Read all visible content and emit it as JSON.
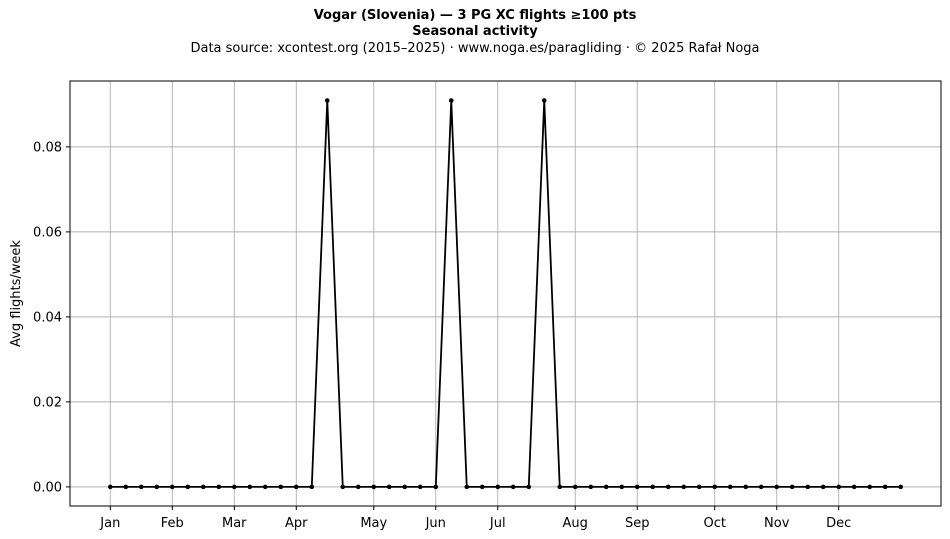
{
  "title": "Vogar (Slovenia)  —  3 PG XC flights ≥100 pts",
  "title2": "Seasonal activity",
  "subtitle": "Data source: xcontest.org (2015–2025)  ·  www.noga.es/paragliding  ·  © 2025 Rafał Noga",
  "chart_data": {
    "type": "line",
    "ylabel": "Avg flights/week",
    "xlabel": "",
    "x": [
      1,
      2,
      3,
      4,
      5,
      6,
      7,
      8,
      9,
      10,
      11,
      12,
      13,
      14,
      15,
      16,
      17,
      18,
      19,
      20,
      21,
      22,
      23,
      24,
      25,
      26,
      27,
      28,
      29,
      30,
      31,
      32,
      33,
      34,
      35,
      36,
      37,
      38,
      39,
      40,
      41,
      42,
      43,
      44,
      45,
      46,
      47,
      48,
      49,
      50,
      51,
      52
    ],
    "series": [
      {
        "values": [
          0,
          0,
          0,
          0,
          0,
          0,
          0,
          0,
          0,
          0,
          0,
          0,
          0,
          0,
          0.0909,
          0,
          0,
          0,
          0,
          0,
          0,
          0,
          0.0909,
          0,
          0,
          0,
          0,
          0,
          0.0909,
          0,
          0,
          0,
          0,
          0,
          0,
          0,
          0,
          0,
          0,
          0,
          0,
          0,
          0,
          0,
          0,
          0,
          0,
          0,
          0,
          0,
          0,
          0
        ],
        "color": "#000000"
      }
    ],
    "xticks": [
      {
        "label": "Jan",
        "week": 1
      },
      {
        "label": "Feb",
        "week": 5
      },
      {
        "label": "Mar",
        "week": 9
      },
      {
        "label": "Apr",
        "week": 13
      },
      {
        "label": "May",
        "week": 18
      },
      {
        "label": "Jun",
        "week": 22
      },
      {
        "label": "Jul",
        "week": 26
      },
      {
        "label": "Aug",
        "week": 31
      },
      {
        "label": "Sep",
        "week": 35
      },
      {
        "label": "Oct",
        "week": 40
      },
      {
        "label": "Nov",
        "week": 44
      },
      {
        "label": "Dec",
        "week": 48
      }
    ],
    "yticks": [
      0.0,
      0.02,
      0.04,
      0.06,
      0.08
    ],
    "ytick_labels": [
      "0.00",
      "0.02",
      "0.04",
      "0.06",
      "0.08"
    ],
    "xlim": [
      -1.6,
      54.6
    ],
    "ylim": [
      -0.0045,
      0.0955
    ],
    "grid": true,
    "legend": "none"
  }
}
